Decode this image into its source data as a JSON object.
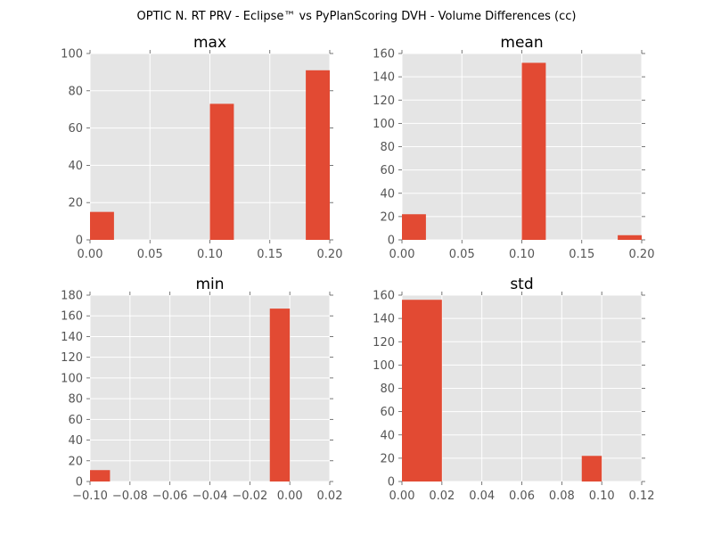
{
  "figure": {
    "title": "OPTIC N. RT PRV - Eclipse™ vs PyPlanScoring DVH - Volume Differences (cc)"
  },
  "colors": {
    "bar": "#E24A33",
    "plot_background": "#E5E5E5",
    "grid": "#FFFFFF",
    "tick_text": "#555555"
  },
  "chart_data": [
    {
      "type": "bar",
      "title": "max",
      "xlim": [
        0.0,
        0.2
      ],
      "ylim": [
        0,
        100
      ],
      "xticks": [
        "0.00",
        "0.05",
        "0.10",
        "0.15",
        "0.20"
      ],
      "xtick_values": [
        0.0,
        0.05,
        0.1,
        0.15,
        0.2
      ],
      "yticks": [
        "0",
        "20",
        "40",
        "60",
        "80",
        "100"
      ],
      "ytick_values": [
        0,
        20,
        40,
        60,
        80,
        100
      ],
      "bins": [
        {
          "x0": 0.0,
          "x1": 0.02,
          "count": 15
        },
        {
          "x0": 0.1,
          "x1": 0.12,
          "count": 73
        },
        {
          "x0": 0.18,
          "x1": 0.2,
          "count": 91
        }
      ],
      "grid": true
    },
    {
      "type": "bar",
      "title": "mean",
      "xlim": [
        0.0,
        0.2
      ],
      "ylim": [
        0,
        160
      ],
      "xticks": [
        "0.00",
        "0.05",
        "0.10",
        "0.15",
        "0.20"
      ],
      "xtick_values": [
        0.0,
        0.05,
        0.1,
        0.15,
        0.2
      ],
      "yticks": [
        "0",
        "20",
        "40",
        "60",
        "80",
        "100",
        "120",
        "140",
        "160"
      ],
      "ytick_values": [
        0,
        20,
        40,
        60,
        80,
        100,
        120,
        140,
        160
      ],
      "bins": [
        {
          "x0": 0.0,
          "x1": 0.02,
          "count": 22
        },
        {
          "x0": 0.1,
          "x1": 0.12,
          "count": 152
        },
        {
          "x0": 0.18,
          "x1": 0.2,
          "count": 4
        }
      ],
      "grid": true
    },
    {
      "type": "bar",
      "title": "min",
      "xlim": [
        -0.1,
        0.02
      ],
      "ylim": [
        0,
        180
      ],
      "xticks": [
        "−0.10",
        "−0.08",
        "−0.06",
        "−0.04",
        "−0.02",
        "0.00",
        "0.02"
      ],
      "xtick_values": [
        -0.1,
        -0.08,
        -0.06,
        -0.04,
        -0.02,
        0.0,
        0.02
      ],
      "yticks": [
        "0",
        "20",
        "40",
        "60",
        "80",
        "100",
        "120",
        "140",
        "160",
        "180"
      ],
      "ytick_values": [
        0,
        20,
        40,
        60,
        80,
        100,
        120,
        140,
        160,
        180
      ],
      "bins": [
        {
          "x0": -0.1,
          "x1": -0.09,
          "count": 11
        },
        {
          "x0": -0.01,
          "x1": 0.0,
          "count": 167
        }
      ],
      "grid": true
    },
    {
      "type": "bar",
      "title": "std",
      "xlim": [
        0.0,
        0.12
      ],
      "ylim": [
        0,
        160
      ],
      "xticks": [
        "0.00",
        "0.02",
        "0.04",
        "0.06",
        "0.08",
        "0.10",
        "0.12"
      ],
      "xtick_values": [
        0.0,
        0.02,
        0.04,
        0.06,
        0.08,
        0.1,
        0.12
      ],
      "yticks": [
        "0",
        "20",
        "40",
        "60",
        "80",
        "100",
        "120",
        "140",
        "160"
      ],
      "ytick_values": [
        0,
        20,
        40,
        60,
        80,
        100,
        120,
        140,
        160
      ],
      "bins": [
        {
          "x0": 0.0,
          "x1": 0.02,
          "count": 156
        },
        {
          "x0": 0.09,
          "x1": 0.1,
          "count": 22
        }
      ],
      "grid": true
    }
  ]
}
